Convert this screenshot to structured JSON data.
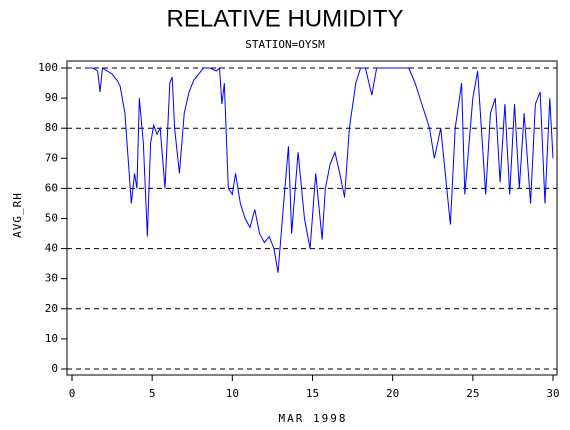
{
  "chart_data": {
    "type": "line",
    "title": "RELATIVE HUMIDITY",
    "subtitle": "STATION=OYSM",
    "x_label": "MAR 1998",
    "y_label": "AVG_RH",
    "xlim": [
      0,
      30
    ],
    "xticks": [
      0,
      5,
      10,
      15,
      20,
      25,
      30
    ],
    "ylim": [
      0,
      100
    ],
    "yticks": [
      0,
      10,
      20,
      30,
      40,
      50,
      60,
      70,
      80,
      90,
      100
    ],
    "grid_values": [
      0,
      20,
      40,
      60,
      80,
      100
    ],
    "series": [
      {
        "name": "AVG_RH",
        "color": "#0000ff",
        "x": [
          1.0,
          1.3,
          1.6,
          1.75,
          1.9,
          2.2,
          2.5,
          2.8,
          3.0,
          3.3,
          3.5,
          3.7,
          3.9,
          4.05,
          4.2,
          4.45,
          4.7,
          4.9,
          5.1,
          5.3,
          5.5,
          5.8,
          6.1,
          6.25,
          6.4,
          6.7,
          7.0,
          7.3,
          7.6,
          7.9,
          8.2,
          8.6,
          9.0,
          9.2,
          9.35,
          9.5,
          9.75,
          10.0,
          10.2,
          10.5,
          10.8,
          11.1,
          11.4,
          11.7,
          12.0,
          12.3,
          12.6,
          12.85,
          13.2,
          13.5,
          13.7,
          14.1,
          14.5,
          14.85,
          15.2,
          15.6,
          15.8,
          16.1,
          16.4,
          16.7,
          17.0,
          17.3,
          17.7,
          18.0,
          18.3,
          18.7,
          19.0,
          19.5,
          20.0,
          20.5,
          21.0,
          21.4,
          21.7,
          22.0,
          22.3,
          22.6,
          23.0,
          23.6,
          23.9,
          24.3,
          24.5,
          25.0,
          25.3,
          25.8,
          26.1,
          26.4,
          26.7,
          27.0,
          27.3,
          27.6,
          27.9,
          28.2,
          28.6,
          28.9,
          29.2,
          29.5,
          29.8,
          30.0
        ],
        "values": [
          100,
          100,
          99,
          92,
          100,
          99,
          98,
          96,
          94,
          85,
          70,
          55,
          65,
          60,
          90,
          75,
          44,
          75,
          81,
          78,
          80,
          60,
          95,
          97,
          80,
          65,
          85,
          92,
          96,
          98,
          100,
          100,
          99,
          100,
          88,
          95,
          60,
          58,
          65,
          55,
          50,
          47,
          53,
          45,
          42,
          44,
          40,
          32,
          55,
          74,
          45,
          72,
          50,
          40,
          65,
          43,
          60,
          68,
          72,
          65,
          57,
          80,
          95,
          100,
          100,
          91,
          100,
          100,
          100,
          100,
          100,
          95,
          90,
          85,
          80,
          70,
          80,
          48,
          80,
          95,
          58,
          90,
          99,
          58,
          85,
          90,
          62,
          88,
          58,
          88,
          60,
          85,
          55,
          88,
          92,
          55,
          90,
          70
        ]
      }
    ]
  }
}
